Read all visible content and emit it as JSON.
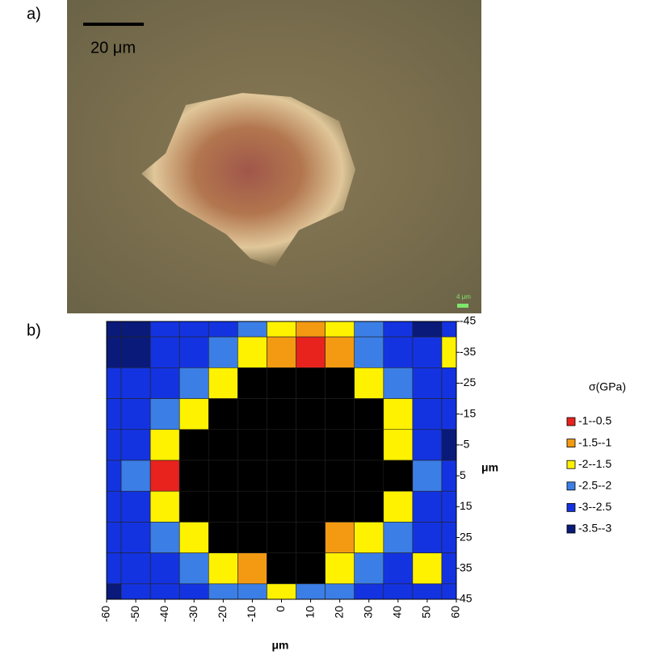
{
  "panel_a": {
    "label": "a)",
    "scale_bar_label": "20 μm",
    "small_scale_label": "4 μm"
  },
  "chart_data": {
    "type": "contour",
    "panel_label": "b)",
    "x_label": "μm",
    "y_label": "μm",
    "legend_title": "σ(GPa)",
    "x": [
      -60,
      -50,
      -40,
      -30,
      -20,
      -10,
      0,
      10,
      20,
      30,
      40,
      50,
      60
    ],
    "y": [
      -45,
      -35,
      -25,
      -15,
      -5,
      5,
      15,
      25,
      35,
      45
    ],
    "z": [
      [
        -3.2,
        -3.2,
        -3,
        -3,
        -2.8,
        -2.3,
        -1.8,
        -1.3,
        -1.8,
        -2.3,
        -3,
        -3.2,
        -3
      ],
      [
        -3.2,
        -3.4,
        -3,
        -2.8,
        -2.3,
        -1.7,
        -1.3,
        -0.8,
        -1.3,
        -2.2,
        -3,
        -3,
        -1.8
      ],
      [
        -3,
        -3,
        -2.8,
        -2.3,
        -1.8,
        -4,
        -4,
        -4,
        -4,
        -1.8,
        -2.5,
        -3,
        -3
      ],
      [
        -3,
        -2.8,
        -2.3,
        -1.8,
        -4,
        -4,
        -4,
        -4,
        -4,
        -4,
        -2,
        -2.8,
        -3
      ],
      [
        -3,
        -2.6,
        -1.8,
        -4,
        -4,
        -4,
        -4,
        -4,
        -4,
        -4,
        -1.8,
        -2.6,
        -3.2
      ],
      [
        -3,
        -2.3,
        -0.8,
        -4,
        -4,
        -4,
        -4,
        -4,
        -4,
        -4,
        -4,
        -2.3,
        -3
      ],
      [
        -3,
        -2.6,
        -2,
        -4,
        -4,
        -4,
        -4,
        -4,
        -4,
        -4,
        -1.8,
        -2.6,
        -3
      ],
      [
        -3,
        -2.8,
        -2.3,
        -1.8,
        -4,
        -4,
        -4,
        -4,
        -1.3,
        -1.8,
        -2.3,
        -2.8,
        -3
      ],
      [
        -3,
        -3,
        -2.8,
        -2.3,
        -1.8,
        -1.3,
        -4,
        -4,
        -1.8,
        -2.3,
        -2.8,
        -2,
        -3
      ],
      [
        -3.2,
        -3,
        -3,
        -2.8,
        -2.3,
        -2.2,
        -1.8,
        -2.3,
        -2.3,
        -2.8,
        -3,
        -3,
        -3
      ]
    ],
    "levels": [
      {
        "name": "-1--0.5",
        "range": [
          -1,
          -0.5
        ],
        "color": "#e8231e"
      },
      {
        "name": "-1.5--1",
        "range": [
          -1.5,
          -1
        ],
        "color": "#f39a12"
      },
      {
        "name": "-2--1.5",
        "range": [
          -2,
          -1.5
        ],
        "color": "#fff200"
      },
      {
        "name": "-2.5--2",
        "range": [
          -2.5,
          -2
        ],
        "color": "#3b7ee6"
      },
      {
        "name": "-3--2.5",
        "range": [
          -3,
          -2.5
        ],
        "color": "#1433e0"
      },
      {
        "name": "-3.5--3",
        "range": [
          -3.5,
          -3
        ],
        "color": "#0a1a7a"
      }
    ],
    "out_of_range_color": "#000000",
    "xlim": [
      -60,
      60
    ],
    "ylim": [
      -45,
      45
    ],
    "y_inverted": true,
    "y_axis_side": "right",
    "xticks": [
      -60,
      -50,
      -40,
      -30,
      -20,
      -10,
      0,
      10,
      20,
      30,
      40,
      50,
      60
    ],
    "yticks": [
      -45,
      -35,
      -25,
      -15,
      -5,
      5,
      15,
      25,
      35,
      45
    ]
  }
}
